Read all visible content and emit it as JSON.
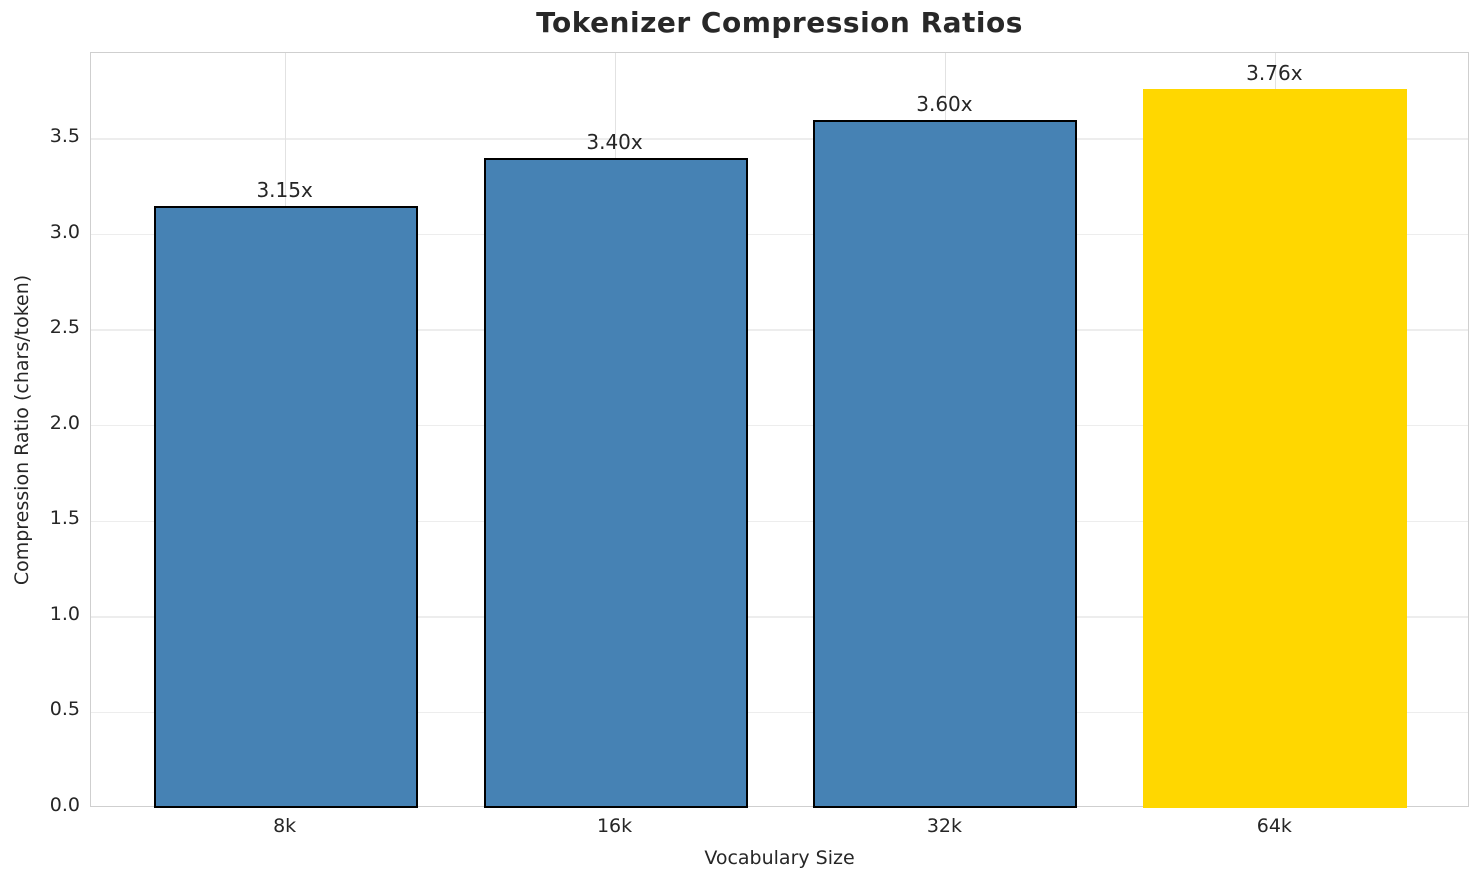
{
  "chart_data": {
    "type": "bar",
    "title": "Tokenizer Compression Ratios",
    "xlabel": "Vocabulary Size",
    "ylabel": "Compression Ratio (chars/token)",
    "categories": [
      "8k",
      "16k",
      "32k",
      "64k"
    ],
    "values": [
      3.15,
      3.4,
      3.6,
      3.76
    ],
    "bar_labels": [
      "3.15x",
      "3.40x",
      "3.60x",
      "3.76x"
    ],
    "ylim": [
      0,
      3.95
    ],
    "yticks": [
      0.0,
      0.5,
      1.0,
      1.5,
      2.0,
      2.5,
      3.0,
      3.5
    ],
    "ytick_labels": [
      "0.0",
      "0.5",
      "1.0",
      "1.5",
      "2.0",
      "2.5",
      "3.0",
      "3.5"
    ],
    "bar_color": "#4682B4",
    "highlight_color": "#FFD700",
    "highlight_index": 3,
    "bar_edge_color": "#000000",
    "grid": true,
    "legend_position": "none",
    "bar_width_data_units": 0.8,
    "xlim": [
      -0.59,
      3.59
    ]
  }
}
